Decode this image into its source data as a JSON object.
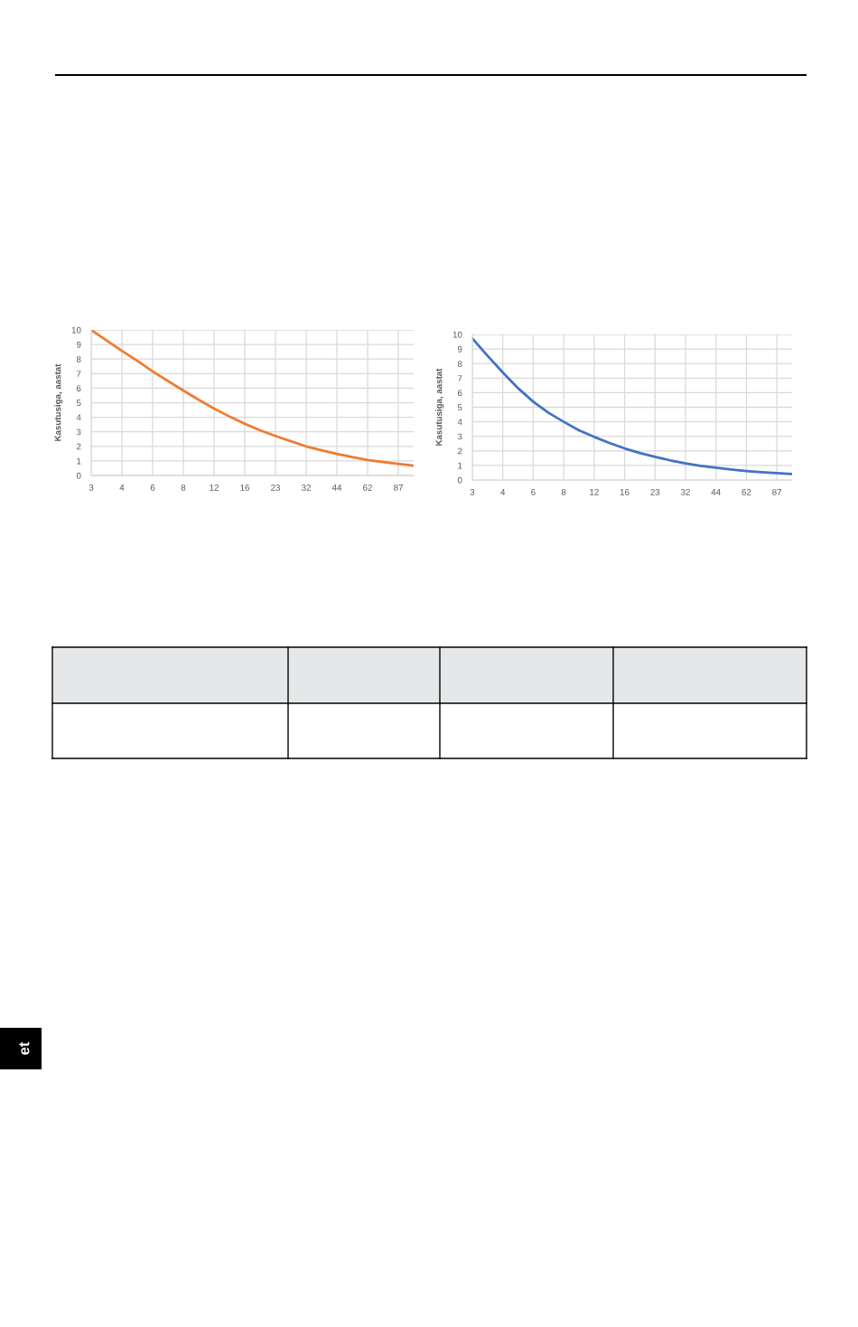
{
  "chart_data": [
    {
      "type": "line",
      "categories": [
        "3",
        null,
        "4",
        null,
        "6",
        null,
        "8",
        null,
        "12",
        null,
        "16",
        null,
        "23",
        null,
        "32",
        null,
        "44",
        null,
        "62",
        null,
        "87",
        null
      ],
      "ylabel": "Kasutusiga, aastat",
      "ylim": [
        0,
        10
      ],
      "yticks": [
        0,
        1,
        2,
        3,
        4,
        5,
        6,
        7,
        8,
        9,
        10
      ],
      "grid": true,
      "series": [
        {
          "color": "#ed7d31",
          "values": [
            10,
            9.28,
            8.56,
            7.88,
            7.15,
            6.49,
            5.84,
            5.2,
            4.6,
            4.06,
            3.55,
            3.11,
            2.72,
            2.35,
            2.0,
            1.73,
            1.48,
            1.26,
            1.07,
            0.93,
            0.8,
            0.68
          ]
        }
      ],
      "annotations": [
        "et"
      ]
    },
    {
      "type": "line",
      "categories": [
        "3",
        null,
        "4",
        null,
        "6",
        null,
        "8",
        null,
        "12",
        null,
        "16",
        null,
        "23",
        null,
        "32",
        null,
        "44",
        null,
        "62",
        null,
        "87",
        null
      ],
      "ylabel": "Kasutusiga, aastat",
      "ylim": [
        0,
        10
      ],
      "yticks": [
        0,
        1,
        2,
        3,
        4,
        5,
        6,
        7,
        8,
        9,
        10
      ],
      "grid": true,
      "series": [
        {
          "color": "#4472c4",
          "values": [
            9.73,
            8.53,
            7.39,
            6.31,
            5.38,
            4.62,
            4.0,
            3.42,
            2.96,
            2.55,
            2.17,
            1.86,
            1.59,
            1.35,
            1.14,
            0.97,
            0.85,
            0.72,
            0.62,
            0.54,
            0.48,
            0.41
          ]
        }
      ]
    }
  ]
}
